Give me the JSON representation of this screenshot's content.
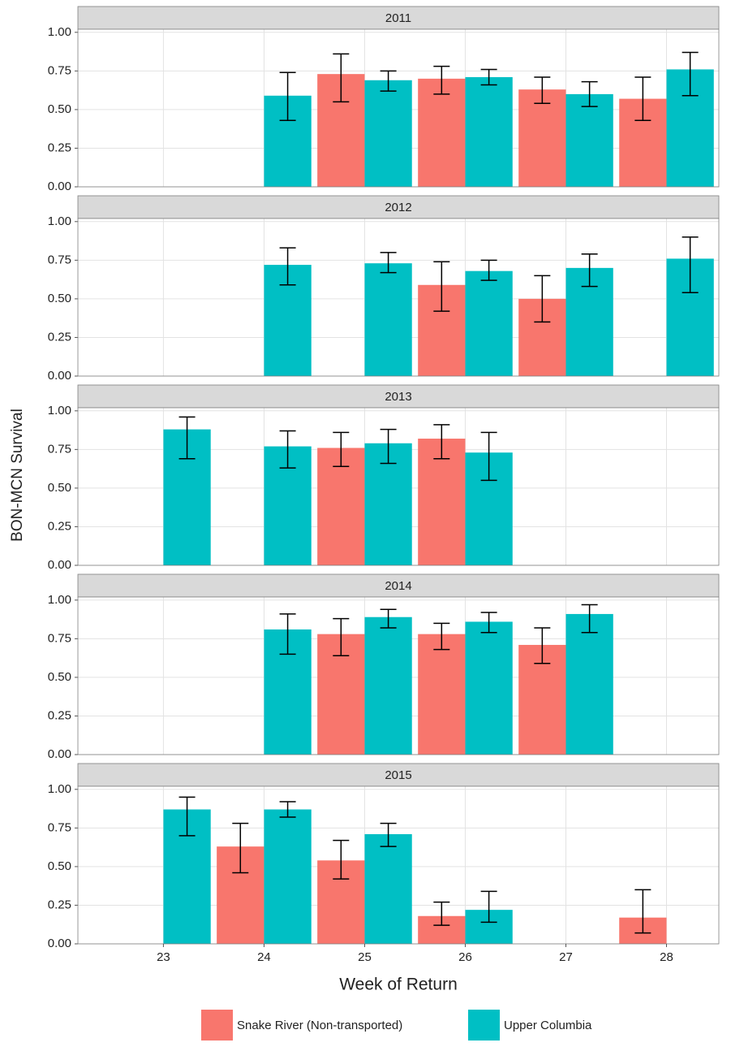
{
  "chart_data": {
    "type": "bar",
    "xlabel": "Week of Return",
    "ylabel": "BON-MCN Survival",
    "x": [
      23,
      24,
      25,
      26,
      27,
      28
    ],
    "xlim": [
      22.15,
      28.52
    ],
    "xticks": [
      23,
      24,
      25,
      26,
      27,
      28
    ],
    "ylim": [
      0,
      1.02
    ],
    "yticks": [
      {
        "value": 0,
        "label": "0.00"
      },
      {
        "value": 0.25,
        "label": "0.25"
      },
      {
        "value": 0.5,
        "label": "0.50"
      },
      {
        "value": 0.75,
        "label": "0.75"
      },
      {
        "value": 1,
        "label": "1.00"
      }
    ],
    "grid": true,
    "legend_position": "bottom",
    "series": [
      {
        "name": "Snake River (Non-transported)",
        "color": "#f8766d"
      },
      {
        "name": "Upper Columbia",
        "color": "#00bfc4"
      }
    ],
    "facets": [
      {
        "title": "2011",
        "series": [
          {
            "values": [
              null,
              null,
              0.73,
              0.7,
              0.63,
              0.57
            ],
            "lower": [
              null,
              null,
              0.55,
              0.6,
              0.54,
              0.43
            ],
            "upper": [
              null,
              null,
              0.86,
              0.78,
              0.71,
              0.71
            ]
          },
          {
            "values": [
              null,
              0.59,
              0.69,
              0.71,
              0.6,
              0.76
            ],
            "lower": [
              null,
              0.43,
              0.62,
              0.66,
              0.52,
              0.59
            ],
            "upper": [
              null,
              0.74,
              0.75,
              0.76,
              0.68,
              0.87
            ]
          }
        ]
      },
      {
        "title": "2012",
        "series": [
          {
            "values": [
              null,
              null,
              null,
              0.59,
              0.5,
              null
            ],
            "lower": [
              null,
              null,
              null,
              0.42,
              0.35,
              null
            ],
            "upper": [
              null,
              null,
              null,
              0.74,
              0.65,
              null
            ]
          },
          {
            "values": [
              null,
              0.72,
              0.73,
              0.68,
              0.7,
              0.76
            ],
            "lower": [
              null,
              0.59,
              0.67,
              0.62,
              0.58,
              0.54
            ],
            "upper": [
              null,
              0.83,
              0.8,
              0.75,
              0.79,
              0.9
            ]
          }
        ]
      },
      {
        "title": "2013",
        "series": [
          {
            "values": [
              null,
              null,
              0.76,
              0.82,
              null,
              null
            ],
            "lower": [
              null,
              null,
              0.64,
              0.69,
              null,
              null
            ],
            "upper": [
              null,
              null,
              0.86,
              0.91,
              null,
              null
            ]
          },
          {
            "values": [
              0.88,
              0.77,
              0.79,
              0.73,
              null,
              null
            ],
            "lower": [
              0.69,
              0.63,
              0.66,
              0.55,
              null,
              null
            ],
            "upper": [
              0.96,
              0.87,
              0.88,
              0.86,
              null,
              null
            ]
          }
        ]
      },
      {
        "title": "2014",
        "series": [
          {
            "values": [
              null,
              null,
              0.78,
              0.78,
              0.71,
              null
            ],
            "lower": [
              null,
              null,
              0.64,
              0.68,
              0.59,
              null
            ],
            "upper": [
              null,
              null,
              0.88,
              0.85,
              0.82,
              null
            ]
          },
          {
            "values": [
              null,
              0.81,
              0.89,
              0.86,
              0.91,
              null
            ],
            "lower": [
              null,
              0.65,
              0.82,
              0.79,
              0.79,
              null
            ],
            "upper": [
              null,
              0.91,
              0.94,
              0.92,
              0.97,
              null
            ]
          }
        ]
      },
      {
        "title": "2015",
        "series": [
          {
            "values": [
              null,
              0.63,
              0.54,
              0.18,
              null,
              0.17
            ],
            "lower": [
              null,
              0.46,
              0.42,
              0.12,
              null,
              0.07
            ],
            "upper": [
              null,
              0.78,
              0.67,
              0.27,
              null,
              0.35
            ]
          },
          {
            "values": [
              0.87,
              0.87,
              0.71,
              0.22,
              null,
              null
            ],
            "lower": [
              0.7,
              0.82,
              0.63,
              0.14,
              null,
              null
            ],
            "upper": [
              0.95,
              0.92,
              0.78,
              0.34,
              null,
              null
            ]
          }
        ]
      }
    ]
  }
}
